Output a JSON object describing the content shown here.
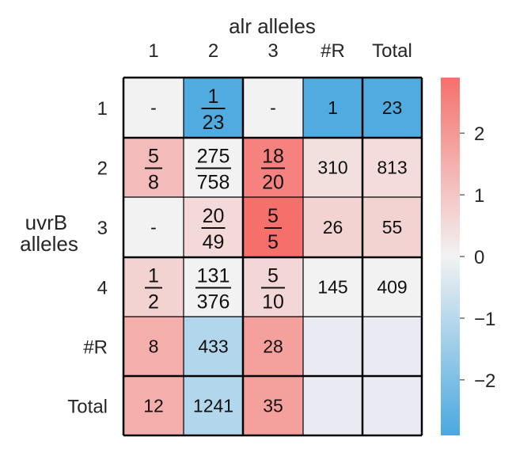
{
  "chart_data": {
    "type": "heatmap",
    "xlabel": "alr alleles",
    "ylabel": [
      "uvrB",
      "alleles"
    ],
    "col_labels": [
      "1",
      "2",
      "3",
      "#R",
      "Total"
    ],
    "row_labels": [
      "1",
      "2",
      "3",
      "4",
      "#R",
      "Total"
    ],
    "cells": [
      [
        {
          "text": "-",
          "v": 0
        },
        {
          "num": "1",
          "den": "23",
          "v": -2.8
        },
        {
          "text": "-",
          "v": 0
        },
        {
          "text": "1",
          "v": -2.8
        },
        {
          "text": "23",
          "v": -2.8
        }
      ],
      [
        {
          "num": "5",
          "den": "8",
          "v": 1.2
        },
        {
          "num": "275",
          "den": "758",
          "v": 0
        },
        {
          "num": "18",
          "den": "20",
          "v": 2.5
        },
        {
          "text": "310",
          "v": 0.4
        },
        {
          "text": "813",
          "v": 0.5
        }
      ],
      [
        {
          "text": "-",
          "v": 0
        },
        {
          "num": "20",
          "den": "49",
          "v": 0.55
        },
        {
          "num": "5",
          "den": "5",
          "v": 2.9
        },
        {
          "text": "26",
          "v": 0.7
        },
        {
          "text": "55",
          "v": 0.7
        }
      ],
      [
        {
          "num": "1",
          "den": "2",
          "v": 0.7
        },
        {
          "num": "131",
          "den": "376",
          "v": 0
        },
        {
          "num": "5",
          "den": "10",
          "v": 0.6
        },
        {
          "text": "145",
          "v": 0
        },
        {
          "text": "409",
          "v": 0
        }
      ],
      [
        {
          "text": "8",
          "v": 1.5
        },
        {
          "text": "433",
          "v": -1.1
        },
        {
          "text": "28",
          "v": 1.8
        },
        {
          "text": "",
          "v": null
        },
        {
          "text": "",
          "v": null
        }
      ],
      [
        {
          "text": "12",
          "v": 1.5
        },
        {
          "text": "1241",
          "v": -1.1
        },
        {
          "text": "35",
          "v": 1.8
        },
        {
          "text": "",
          "v": null
        },
        {
          "text": "",
          "v": null
        }
      ]
    ],
    "color_range": [
      -2.9,
      2.9
    ],
    "colorbar_ticks": [
      "2",
      "1",
      "0",
      "−1",
      "−2"
    ],
    "colorbar_tick_values": [
      2,
      1,
      0,
      -1,
      -2
    ],
    "colors": {
      "negative": "#4aa8e0",
      "neutral": "#f2f2f2",
      "positive": "#f5706b",
      "empty": "#eaeaf2",
      "grid": "#000000"
    }
  }
}
